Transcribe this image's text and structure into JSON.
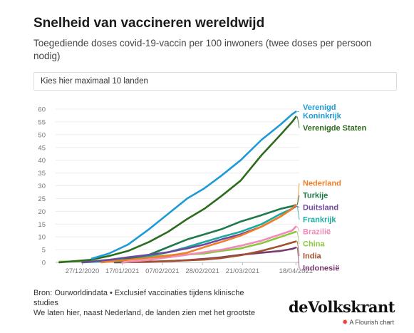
{
  "title": "Snelheid van vaccineren wereldwijd",
  "subtitle": "Toegediende doses covid-19-vaccin per 100 inwoners (twee doses per persoon nodig)",
  "selector": {
    "label": "Kies hier maximaal 10 landen"
  },
  "footer": {
    "source": "Bron: Ourworldindata • Exclusief vaccinaties tijdens klinische studies",
    "note": "We laten hier, naast Nederland, de landen zien met het grootste"
  },
  "branding": {
    "logo": "deVolkskrant",
    "credit": "A Flourish chart",
    "credit_icon": "flourish-star-icon"
  },
  "chart_data": {
    "type": "line",
    "x_start": "2020-12-13",
    "x_end": "2021-04-19",
    "xticks": [
      {
        "date": "2020-12-27",
        "label": "27/12/2020"
      },
      {
        "date": "2021-01-17",
        "label": "17/01/2021"
      },
      {
        "date": "2021-02-07",
        "label": "07/02/2021"
      },
      {
        "date": "2021-02-28",
        "label": "28/02/2021"
      },
      {
        "date": "2021-03-21",
        "label": "21/03/2021"
      },
      {
        "date": "2021-04-18",
        "label": "18/04/2021"
      }
    ],
    "ylim": [
      0,
      60
    ],
    "yticks": [
      0,
      5,
      10,
      15,
      20,
      25,
      30,
      35,
      40,
      45,
      50,
      55,
      60
    ],
    "grid": true,
    "legend": "right-end-labels",
    "series": [
      {
        "name": "Verenigd Koninkrijk",
        "label_lines": [
          "Verenigd",
          "Koninkrijk"
        ],
        "color": "#1f9ad6",
        "points": [
          [
            "2021-01-01",
            1.5
          ],
          [
            "2021-01-10",
            3.5
          ],
          [
            "2021-01-20",
            7
          ],
          [
            "2021-01-31",
            13
          ],
          [
            "2021-02-10",
            19
          ],
          [
            "2021-02-20",
            25
          ],
          [
            "2021-03-01",
            29
          ],
          [
            "2021-03-10",
            34
          ],
          [
            "2021-03-20",
            40
          ],
          [
            "2021-03-31",
            48
          ],
          [
            "2021-04-10",
            54
          ],
          [
            "2021-04-16",
            58
          ],
          [
            "2021-04-18",
            59
          ]
        ]
      },
      {
        "name": "Verenigde Staten",
        "label_lines": [
          "Verenigde Staten"
        ],
        "color": "#2e6b1f",
        "points": [
          [
            "2020-12-15",
            0
          ],
          [
            "2020-12-31",
            1
          ],
          [
            "2021-01-10",
            2.5
          ],
          [
            "2021-01-20",
            4.5
          ],
          [
            "2021-01-31",
            8
          ],
          [
            "2021-02-10",
            12
          ],
          [
            "2021-02-20",
            17
          ],
          [
            "2021-03-01",
            21
          ],
          [
            "2021-03-10",
            26
          ],
          [
            "2021-03-20",
            32
          ],
          [
            "2021-03-31",
            42
          ],
          [
            "2021-04-10",
            50
          ],
          [
            "2021-04-16",
            55
          ],
          [
            "2021-04-18",
            57
          ]
        ]
      },
      {
        "name": "Nederland",
        "label_lines": [
          "Nederland"
        ],
        "color": "#f07f2a",
        "points": [
          [
            "2021-01-06",
            0
          ],
          [
            "2021-01-20",
            1
          ],
          [
            "2021-01-31",
            1.8
          ],
          [
            "2021-02-10",
            2.6
          ],
          [
            "2021-02-20",
            3.8
          ],
          [
            "2021-03-01",
            6
          ],
          [
            "2021-03-10",
            8
          ],
          [
            "2021-03-20",
            10.5
          ],
          [
            "2021-03-31",
            14
          ],
          [
            "2021-04-10",
            18
          ],
          [
            "2021-04-16",
            21
          ],
          [
            "2021-04-18",
            22.5
          ]
        ]
      },
      {
        "name": "Duitsland",
        "label_lines": [
          "Duitsland"
        ],
        "color": "#6e4a9e",
        "points": [
          [
            "2020-12-27",
            0
          ],
          [
            "2021-01-10",
            1
          ],
          [
            "2021-01-20",
            2
          ],
          [
            "2021-01-31",
            3
          ],
          [
            "2021-02-10",
            4
          ],
          [
            "2021-02-20",
            5.5
          ],
          [
            "2021-03-01",
            7
          ],
          [
            "2021-03-10",
            9
          ],
          [
            "2021-03-20",
            11
          ],
          [
            "2021-03-31",
            14
          ],
          [
            "2021-04-10",
            18
          ],
          [
            "2021-04-16",
            21
          ],
          [
            "2021-04-18",
            22
          ]
        ]
      },
      {
        "name": "Turkije",
        "label_lines": [
          "Turkije"
        ],
        "color": "#1e7a4a",
        "points": [
          [
            "2021-01-14",
            0
          ],
          [
            "2021-01-20",
            1.5
          ],
          [
            "2021-01-31",
            3
          ],
          [
            "2021-02-10",
            6
          ],
          [
            "2021-02-20",
            9
          ],
          [
            "2021-03-01",
            11
          ],
          [
            "2021-03-10",
            13
          ],
          [
            "2021-03-20",
            16
          ],
          [
            "2021-03-31",
            18.5
          ],
          [
            "2021-04-10",
            21
          ],
          [
            "2021-04-16",
            22
          ],
          [
            "2021-04-18",
            22.5
          ]
        ]
      },
      {
        "name": "Frankrijk",
        "label_lines": [
          "Frankrijk"
        ],
        "color": "#1aaa9e",
        "points": [
          [
            "2020-12-27",
            0
          ],
          [
            "2021-01-10",
            0.5
          ],
          [
            "2021-01-20",
            1.3
          ],
          [
            "2021-01-31",
            2.5
          ],
          [
            "2021-02-10",
            4
          ],
          [
            "2021-02-20",
            6
          ],
          [
            "2021-03-01",
            8
          ],
          [
            "2021-03-10",
            10
          ],
          [
            "2021-03-20",
            12
          ],
          [
            "2021-03-31",
            15
          ],
          [
            "2021-04-10",
            19
          ],
          [
            "2021-04-16",
            21
          ],
          [
            "2021-04-18",
            22
          ]
        ]
      },
      {
        "name": "Brazilië",
        "label_lines": [
          "Brazilië"
        ],
        "color": "#f08ab8",
        "points": [
          [
            "2021-01-17",
            0
          ],
          [
            "2021-01-31",
            1
          ],
          [
            "2021-02-10",
            2
          ],
          [
            "2021-02-20",
            3
          ],
          [
            "2021-03-01",
            4
          ],
          [
            "2021-03-10",
            5
          ],
          [
            "2021-03-20",
            6.5
          ],
          [
            "2021-03-31",
            8.5
          ],
          [
            "2021-04-10",
            11
          ],
          [
            "2021-04-16",
            12.5
          ],
          [
            "2021-04-18",
            14
          ]
        ]
      },
      {
        "name": "China",
        "label_lines": [
          "China"
        ],
        "color": "#8cc63f",
        "points": [
          [
            "2020-12-15",
            0.3
          ],
          [
            "2020-12-31",
            0.5
          ],
          [
            "2021-01-20",
            1.5
          ],
          [
            "2021-01-31",
            2.2
          ],
          [
            "2021-02-10",
            2.8
          ],
          [
            "2021-02-20",
            3.1
          ],
          [
            "2021-03-01",
            3.5
          ],
          [
            "2021-03-10",
            4.5
          ],
          [
            "2021-03-20",
            5.5
          ],
          [
            "2021-03-31",
            7.5
          ],
          [
            "2021-04-10",
            10
          ],
          [
            "2021-04-16",
            11.5
          ],
          [
            "2021-04-18",
            12
          ]
        ]
      },
      {
        "name": "India",
        "label_lines": [
          "India"
        ],
        "color": "#a0522d",
        "points": [
          [
            "2021-01-16",
            0
          ],
          [
            "2021-01-31",
            0.3
          ],
          [
            "2021-02-10",
            0.5
          ],
          [
            "2021-02-20",
            0.8
          ],
          [
            "2021-03-01",
            1.1
          ],
          [
            "2021-03-10",
            1.7
          ],
          [
            "2021-03-20",
            2.8
          ],
          [
            "2021-03-31",
            4.5
          ],
          [
            "2021-04-10",
            6.5
          ],
          [
            "2021-04-16",
            7.8
          ],
          [
            "2021-04-18",
            8.2
          ]
        ]
      },
      {
        "name": "Indonesië",
        "label_lines": [
          "Indonesië"
        ],
        "color": "#7a3b6e",
        "points": [
          [
            "2021-01-13",
            0
          ],
          [
            "2021-01-31",
            0.2
          ],
          [
            "2021-02-10",
            0.5
          ],
          [
            "2021-02-20",
            0.9
          ],
          [
            "2021-03-01",
            1.4
          ],
          [
            "2021-03-10",
            2
          ],
          [
            "2021-03-20",
            3
          ],
          [
            "2021-03-31",
            3.8
          ],
          [
            "2021-04-10",
            4.5
          ],
          [
            "2021-04-16",
            5.3
          ],
          [
            "2021-04-18",
            5.8
          ]
        ]
      }
    ]
  }
}
